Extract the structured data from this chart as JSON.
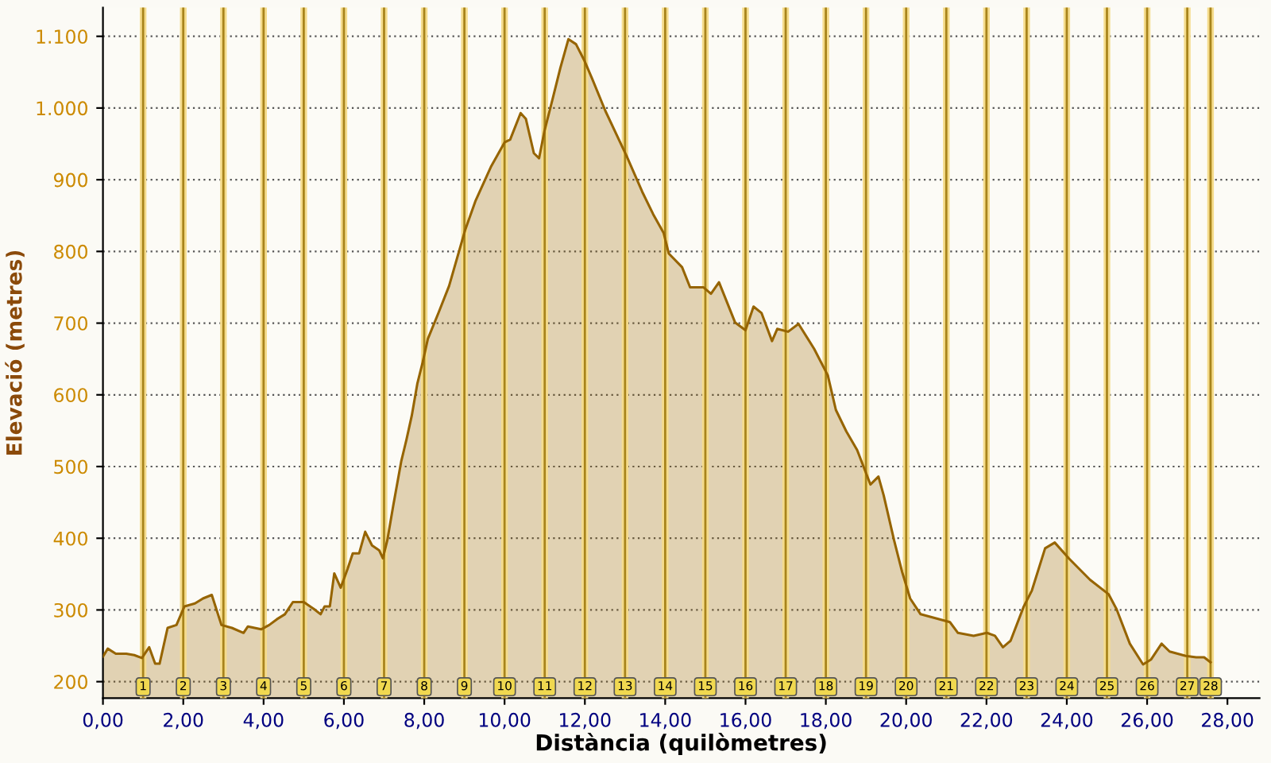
{
  "chart_data": {
    "type": "area",
    "xlabel": "Distància (quilòmetres)",
    "ylabel": "Elevació (metres)",
    "x": [
      0,
      0.12,
      0.32,
      0.58,
      0.78,
      0.97,
      1.15,
      1.3,
      1.41,
      1.61,
      1.83,
      2.03,
      2.29,
      2.49,
      2.71,
      2.95,
      3.21,
      3.5,
      3.61,
      3.94,
      4.14,
      4.33,
      4.53,
      4.73,
      5.0,
      5.26,
      5.42,
      5.52,
      5.65,
      5.76,
      5.92,
      6.09,
      6.22,
      6.38,
      6.53,
      6.7,
      6.88,
      6.97,
      7.08,
      7.23,
      7.43,
      7.56,
      7.69,
      7.83,
      7.96,
      8.09,
      8.36,
      8.62,
      9.02,
      9.28,
      9.67,
      10.0,
      10.14,
      10.4,
      10.53,
      10.73,
      10.86,
      10.99,
      11.19,
      11.39,
      11.59,
      11.78,
      11.98,
      12.18,
      12.51,
      13.04,
      13.43,
      13.7,
      13.96,
      14.09,
      14.42,
      14.62,
      14.95,
      15.14,
      15.34,
      15.74,
      16.0,
      16.2,
      16.4,
      16.66,
      16.79,
      17.06,
      17.32,
      17.71,
      18.05,
      18.25,
      18.51,
      18.78,
      19.11,
      19.31,
      19.44,
      19.7,
      19.9,
      20.1,
      20.36,
      21.09,
      21.29,
      21.68,
      22.01,
      22.21,
      22.41,
      22.6,
      22.93,
      23.13,
      23.46,
      23.7,
      24.05,
      24.58,
      25.04,
      25.24,
      25.57,
      25.9,
      26.1,
      26.36,
      26.56,
      26.96,
      27.22,
      27.42,
      27.58
    ],
    "series": [
      {
        "color": "#966400",
        "values": [
          235,
          246,
          239,
          239,
          237,
          233,
          248,
          225,
          225,
          275,
          279,
          305,
          309,
          316,
          321,
          279,
          275,
          268,
          277,
          273,
          279,
          287,
          294,
          311,
          311,
          301,
          294,
          305,
          305,
          351,
          331,
          357,
          379,
          379,
          409,
          390,
          383,
          372,
          397,
          446,
          508,
          538,
          571,
          616,
          645,
          678,
          715,
          752,
          830,
          871,
          919,
          952,
          956,
          993,
          985,
          937,
          930,
          967,
          1011,
          1056,
          1096,
          1089,
          1067,
          1041,
          996,
          933,
          883,
          852,
          826,
          797,
          778,
          750,
          750,
          741,
          757,
          701,
          690,
          723,
          714,
          675,
          692,
          688,
          699,
          664,
          627,
          579,
          549,
          523,
          475,
          486,
          460,
          397,
          353,
          316,
          294,
          283,
          268,
          264,
          268,
          264,
          248,
          257,
          305,
          327,
          386,
          394,
          372,
          342,
          322,
          301,
          253,
          224,
          231,
          253,
          242,
          236,
          234,
          234,
          227
        ]
      }
    ],
    "xlim": [
      0,
      28.8
    ],
    "ylim": [
      177,
      1140
    ],
    "xticks": [
      {
        "value": 0,
        "label": "0,00"
      },
      {
        "value": 2,
        "label": "2,00"
      },
      {
        "value": 4,
        "label": "4,00"
      },
      {
        "value": 6,
        "label": "6,00"
      },
      {
        "value": 8,
        "label": "8,00"
      },
      {
        "value": 10,
        "label": "10,00"
      },
      {
        "value": 12,
        "label": "12,00"
      },
      {
        "value": 14,
        "label": "14,00"
      },
      {
        "value": 16,
        "label": "16,00"
      },
      {
        "value": 18,
        "label": "18,00"
      },
      {
        "value": 20,
        "label": "20,00"
      },
      {
        "value": 22,
        "label": "22,00"
      },
      {
        "value": 24,
        "label": "24,00"
      },
      {
        "value": 26,
        "label": "26,00"
      },
      {
        "value": 28,
        "label": "28,00"
      }
    ],
    "yticks": [
      200,
      300,
      400,
      500,
      600,
      700,
      800,
      900,
      {
        "value": 1000,
        "label": "1.000"
      },
      {
        "value": 1100,
        "label": "1.100"
      }
    ],
    "grid": "y",
    "ref_lines": [
      {
        "axis": "x",
        "value": 1,
        "label": "1",
        "color": "#a8841c"
      },
      {
        "axis": "x",
        "value": 2,
        "label": "2",
        "color": "#a8841c"
      },
      {
        "axis": "x",
        "value": 3,
        "label": "3",
        "color": "#a8841c"
      },
      {
        "axis": "x",
        "value": 4,
        "label": "4",
        "color": "#a8841c"
      },
      {
        "axis": "x",
        "value": 5,
        "label": "5",
        "color": "#a8841c"
      },
      {
        "axis": "x",
        "value": 6,
        "label": "6",
        "color": "#a8841c"
      },
      {
        "axis": "x",
        "value": 7,
        "label": "7",
        "color": "#a8841c"
      },
      {
        "axis": "x",
        "value": 8,
        "label": "8",
        "color": "#a8841c"
      },
      {
        "axis": "x",
        "value": 9,
        "label": "9",
        "color": "#a8841c"
      },
      {
        "axis": "x",
        "value": 10,
        "label": "10",
        "color": "#a8841c"
      },
      {
        "axis": "x",
        "value": 11,
        "label": "11",
        "color": "#a8841c"
      },
      {
        "axis": "x",
        "value": 12,
        "label": "12",
        "color": "#a8841c"
      },
      {
        "axis": "x",
        "value": 13,
        "label": "13",
        "color": "#a8841c"
      },
      {
        "axis": "x",
        "value": 14,
        "label": "14",
        "color": "#a8841c"
      },
      {
        "axis": "x",
        "value": 15,
        "label": "15",
        "color": "#a8841c"
      },
      {
        "axis": "x",
        "value": 16,
        "label": "16",
        "color": "#a8841c"
      },
      {
        "axis": "x",
        "value": 17,
        "label": "17",
        "color": "#a8841c"
      },
      {
        "axis": "x",
        "value": 18,
        "label": "18",
        "color": "#a8841c"
      },
      {
        "axis": "x",
        "value": 19,
        "label": "19",
        "color": "#a8841c"
      },
      {
        "axis": "x",
        "value": 20,
        "label": "20",
        "color": "#a8841c"
      },
      {
        "axis": "x",
        "value": 21,
        "label": "21",
        "color": "#a8841c"
      },
      {
        "axis": "x",
        "value": 22,
        "label": "22",
        "color": "#a8841c"
      },
      {
        "axis": "x",
        "value": 23,
        "label": "23",
        "color": "#a8841c"
      },
      {
        "axis": "x",
        "value": 24,
        "label": "24",
        "color": "#a8841c"
      },
      {
        "axis": "x",
        "value": 25,
        "label": "25",
        "color": "#a8841c"
      },
      {
        "axis": "x",
        "value": 26,
        "label": "26",
        "color": "#a8841c"
      },
      {
        "axis": "x",
        "value": 27,
        "label": "27",
        "color": "#a8841c"
      },
      {
        "axis": "x",
        "value": 27.58,
        "label": "28",
        "color": "#a8841c"
      }
    ]
  }
}
